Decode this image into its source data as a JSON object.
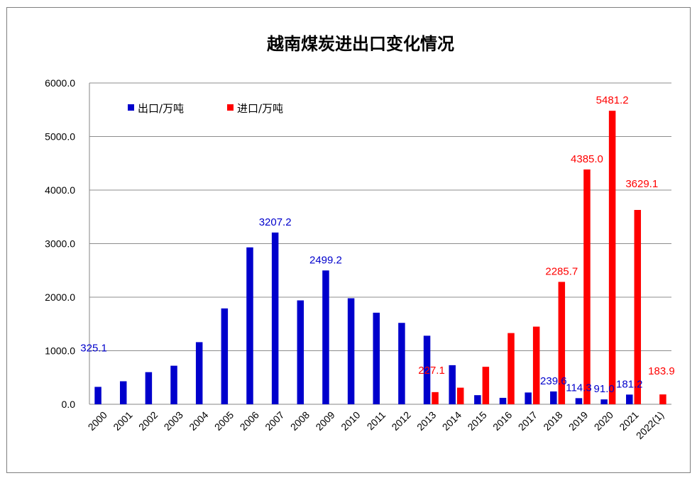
{
  "chart_data": {
    "type": "bar",
    "title": "越南煤炭进出口变化情况",
    "xlabel": "",
    "ylabel": "",
    "ylim": [
      0,
      6000
    ],
    "yticks": [
      "0.0",
      "1000.0",
      "2000.0",
      "3000.0",
      "4000.0",
      "5000.0",
      "6000.0"
    ],
    "grid": true,
    "legend_position": "top-left",
    "categories": [
      "2000",
      "2001",
      "2002",
      "2003",
      "2004",
      "2005",
      "2006",
      "2007",
      "2008",
      "2009",
      "2010",
      "2011",
      "2012",
      "2013",
      "2014",
      "2015",
      "2016",
      "2017",
      "2018",
      "2019",
      "2020",
      "2021",
      "2022(1)"
    ],
    "series": [
      {
        "name": "出口/万吨",
        "color": "#0000cc",
        "values": [
          325.1,
          430,
          600,
          720,
          1160,
          1790,
          2930,
          3207.2,
          1940,
          2499.2,
          1980,
          1710,
          1520,
          1280,
          730,
          170,
          120,
          220,
          239.6,
          114.3,
          91.0,
          181.2,
          null
        ],
        "labels": {
          "0": "325.1",
          "7": "3207.2",
          "9": "2499.2",
          "18": "239.6",
          "19": "114.3",
          "20": "91.0",
          "21": "181.2"
        }
      },
      {
        "name": "进口/万吨",
        "color": "#ff0000",
        "values": [
          null,
          null,
          null,
          null,
          null,
          null,
          null,
          null,
          null,
          null,
          null,
          null,
          null,
          227.1,
          310,
          700,
          1330,
          1450,
          2285.7,
          4385.0,
          5481.2,
          3629.1,
          183.9
        ],
        "labels": {
          "13": "227.1",
          "18": "2285.7",
          "19": "4385.0",
          "20": "5481.2",
          "21": "3629.1",
          "22": "183.9"
        }
      }
    ]
  }
}
